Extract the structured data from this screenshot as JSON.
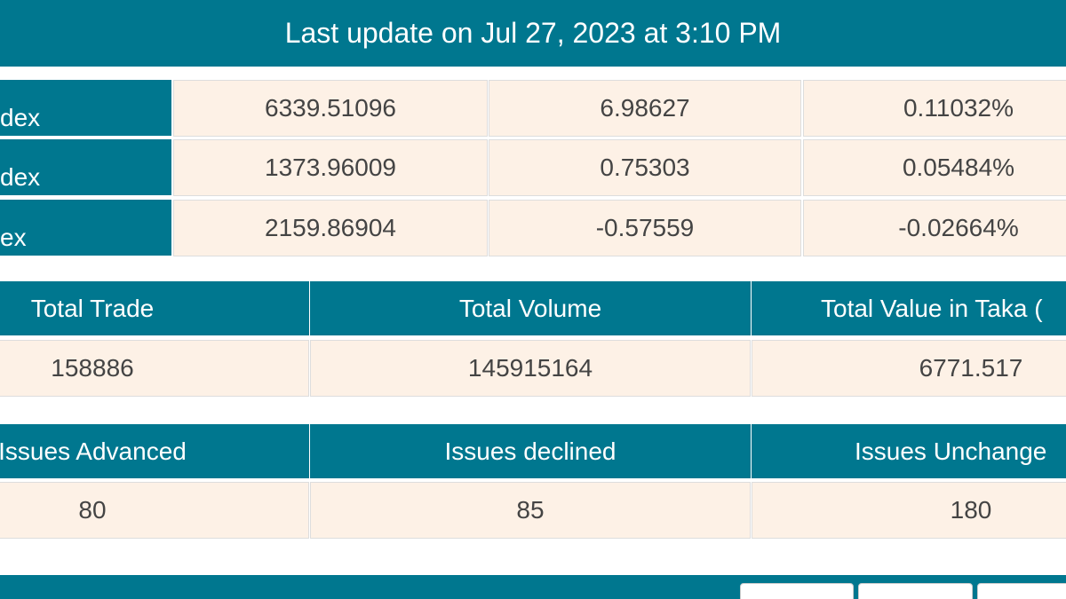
{
  "header": {
    "title": "Last update on Jul 27, 2023 at 3:10 PM"
  },
  "index_table": {
    "rows": [
      [
        "dex",
        "6339.51096",
        "6.98627",
        "0.11032%"
      ],
      [
        "dex",
        "1373.96009",
        "0.75303",
        "0.05484%"
      ],
      [
        "ex",
        "2159.86904",
        "-0.57559",
        "-0.02664%"
      ]
    ]
  },
  "trade_table": {
    "headers": [
      "Total Trade",
      "Total Volume",
      "Total Value in Taka ("
    ],
    "values": [
      "158886",
      "145915164",
      "6771.517"
    ]
  },
  "issues_table": {
    "headers": [
      "Issues Advanced",
      "Issues declined",
      "Issues Unchange"
    ],
    "values": [
      "80",
      "85",
      "180"
    ]
  }
}
